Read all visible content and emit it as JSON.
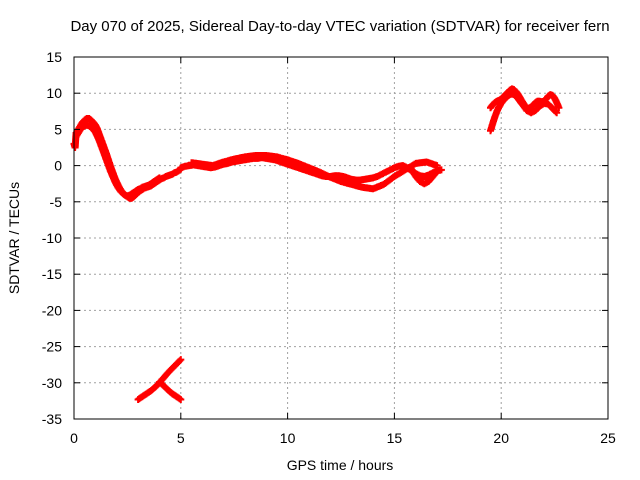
{
  "chart_data": {
    "type": "scatter",
    "title": "Day 070 of 2025, Sidereal Day-to-day VTEC variation (SDTVAR) for receiver fern",
    "xlabel": "GPS time / hours",
    "ylabel": "SDTVAR / TECUs",
    "xlim": [
      0,
      25
    ],
    "ylim": [
      -35,
      15
    ],
    "x_ticks": [
      0,
      5,
      10,
      15,
      20,
      25
    ],
    "y_ticks": [
      15,
      10,
      5,
      0,
      -5,
      -10,
      -15,
      -20,
      -25,
      -30,
      -35
    ],
    "grid": true,
    "series": [
      {
        "name": "SDTVAR",
        "color": "#ff0000",
        "marker": "plus",
        "segments": [
          {
            "x": [
              0.0,
              0.05,
              0.1,
              0.2,
              0.3,
              0.4,
              0.5,
              0.6,
              0.7,
              0.8,
              0.9,
              1.0,
              1.1,
              1.2,
              1.3,
              1.4,
              1.5,
              1.6,
              1.7,
              1.8,
              1.9,
              2.0,
              2.1,
              2.2,
              2.3,
              2.4,
              2.5,
              2.6,
              2.7,
              2.8,
              2.9,
              3.0,
              3.1,
              3.2,
              3.3,
              3.4,
              3.5,
              3.6,
              3.7,
              3.8,
              3.9,
              4.0,
              4.1,
              4.2,
              4.3,
              4.4,
              4.5,
              4.6,
              4.7,
              4.8,
              4.9,
              5.0
            ],
            "y": [
              3.0,
              2.5,
              4.5,
              5.0,
              5.5,
              6.0,
              6.3,
              6.5,
              6.5,
              6.3,
              6.0,
              5.6,
              5.0,
              4.2,
              3.4,
              2.6,
              1.8,
              0.9,
              0.0,
              -0.8,
              -1.6,
              -2.3,
              -2.9,
              -3.4,
              -3.8,
              -4.1,
              -4.3,
              -4.5,
              -4.5,
              -4.3,
              -4.0,
              -3.7,
              -3.5,
              -3.3,
              -3.1,
              -3.0,
              -2.9,
              -2.8,
              -2.6,
              -2.4,
              -2.2,
              -2.0,
              -1.8,
              -1.7,
              -1.5,
              -1.4,
              -1.3,
              -1.2,
              -1.0,
              -0.9,
              -0.7,
              -0.5
            ]
          },
          {
            "x": [
              0.1,
              0.2,
              0.3,
              0.4,
              0.5,
              0.6,
              0.7,
              0.8,
              0.9,
              1.0,
              1.1,
              1.2,
              1.3,
              1.4,
              1.5,
              1.6,
              1.7,
              1.8,
              1.9,
              2.0,
              2.1,
              2.2,
              2.3,
              2.4,
              2.5,
              2.6,
              2.7,
              2.8,
              2.9,
              3.0,
              3.1,
              3.2,
              3.3,
              3.4,
              3.5,
              3.6,
              3.7,
              3.8,
              3.9,
              4.0
            ],
            "y": [
              4.0,
              4.5,
              5.0,
              5.3,
              5.5,
              5.6,
              5.5,
              5.3,
              5.0,
              4.6,
              4.0,
              3.3,
              2.5,
              1.7,
              0.9,
              0.1,
              -0.7,
              -1.4,
              -2.1,
              -2.7,
              -3.2,
              -3.6,
              -3.9,
              -4.1,
              -4.2,
              -4.1,
              -3.9,
              -3.7,
              -3.5,
              -3.3,
              -3.2,
              -3.0,
              -2.9,
              -2.8,
              -2.7,
              -2.5,
              -2.3,
              -2.1,
              -1.9,
              -1.7
            ]
          },
          {
            "x": [
              5.0,
              5.2,
              5.4,
              5.6,
              5.8,
              6.0,
              6.2,
              6.4,
              6.6,
              6.8,
              7.0,
              7.2,
              7.4,
              7.6,
              7.8,
              8.0,
              8.2,
              8.4,
              8.6,
              8.8,
              9.0,
              9.2,
              9.4,
              9.6,
              9.8,
              10.0,
              10.2,
              10.4,
              10.6,
              10.8,
              11.0,
              11.2,
              11.4,
              11.6,
              11.8,
              12.0,
              12.2,
              12.4,
              12.6,
              12.8,
              13.0,
              13.2,
              13.4,
              13.6,
              13.8,
              14.0,
              14.2,
              14.4,
              14.6,
              14.8,
              15.0,
              15.2,
              15.4,
              15.6,
              15.8,
              16.0,
              16.2,
              16.4,
              16.6,
              16.8,
              17.0,
              17.2
            ],
            "y": [
              -0.3,
              -0.1,
              0.0,
              0.1,
              0.0,
              -0.1,
              -0.2,
              -0.3,
              -0.2,
              0.0,
              0.2,
              0.3,
              0.5,
              0.6,
              0.7,
              0.8,
              0.9,
              1.0,
              1.0,
              1.1,
              1.0,
              0.9,
              0.8,
              0.6,
              0.4,
              0.2,
              0.0,
              -0.2,
              -0.4,
              -0.6,
              -0.8,
              -1.0,
              -1.2,
              -1.4,
              -1.5,
              -1.5,
              -1.4,
              -1.4,
              -1.5,
              -1.7,
              -1.9,
              -2.0,
              -2.0,
              -1.9,
              -1.8,
              -1.7,
              -1.5,
              -1.2,
              -0.9,
              -0.6,
              -0.3,
              -0.1,
              0.0,
              -0.3,
              -0.7,
              -1.1,
              -1.4,
              -1.5,
              -1.3,
              -1.0,
              -0.7,
              -0.6
            ]
          },
          {
            "x": [
              5.5,
              6.0,
              6.5,
              7.0,
              7.5,
              8.0,
              8.5,
              9.0,
              9.5,
              10.0,
              10.5,
              11.0,
              11.5,
              12.0,
              12.5,
              13.0,
              13.5,
              14.0,
              14.5,
              15.0,
              15.5,
              16.0,
              16.5,
              17.0
            ],
            "y": [
              0.4,
              0.2,
              0.0,
              0.5,
              0.9,
              1.2,
              1.4,
              1.4,
              1.2,
              0.8,
              0.3,
              -0.3,
              -0.9,
              -1.6,
              -2.2,
              -2.6,
              -3.0,
              -3.2,
              -2.6,
              -1.5,
              -0.6,
              0.3,
              0.5,
              0.0
            ]
          },
          {
            "x": [
              15.8,
              16.0,
              16.2,
              16.4,
              16.6,
              16.8,
              17.0
            ],
            "y": [
              -0.5,
              -1.5,
              -2.2,
              -2.5,
              -2.2,
              -1.5,
              -0.8
            ]
          },
          {
            "x": [
              3.0,
              3.2,
              3.4,
              3.6,
              3.8,
              4.0,
              4.2,
              4.4,
              4.6,
              4.8,
              5.0
            ],
            "y": [
              -32.3,
              -31.9,
              -31.5,
              -31.1,
              -30.6,
              -30.0,
              -29.3,
              -28.6,
              -28.0,
              -27.4,
              -26.8
            ]
          },
          {
            "x": [
              4.0,
              4.2,
              4.4,
              4.6,
              4.8,
              5.0
            ],
            "y": [
              -29.9,
              -30.4,
              -31.0,
              -31.5,
              -31.9,
              -32.3
            ]
          },
          {
            "x": [
              19.5,
              19.6,
              19.7,
              19.8,
              19.9,
              20.0,
              20.1,
              20.2,
              20.3,
              20.4,
              20.5,
              20.6,
              20.7,
              20.8,
              20.9,
              21.0,
              21.1,
              21.2,
              21.3,
              21.4,
              21.5,
              21.6,
              21.7,
              21.8,
              21.9,
              22.0,
              22.1,
              22.2,
              22.3,
              22.4,
              22.5,
              22.6,
              22.7
            ],
            "y": [
              8.0,
              8.4,
              8.7,
              8.9,
              9.0,
              9.2,
              9.5,
              9.8,
              10.1,
              10.4,
              10.6,
              10.5,
              10.2,
              9.8,
              9.3,
              8.8,
              8.3,
              8.0,
              7.9,
              8.1,
              8.4,
              8.7,
              8.9,
              8.9,
              8.8,
              8.9,
              9.2,
              9.6,
              9.8,
              9.7,
              9.3,
              8.7,
              8.0
            ]
          },
          {
            "x": [
              19.5,
              19.6,
              19.7,
              19.8,
              19.9,
              20.0,
              20.1,
              20.2,
              20.3,
              20.4,
              20.5,
              20.6,
              20.7,
              20.8,
              20.9,
              21.0,
              21.2,
              21.4,
              21.6,
              21.8,
              22.0,
              22.2,
              22.4,
              22.6
            ],
            "y": [
              4.8,
              5.8,
              6.7,
              7.5,
              8.1,
              8.6,
              9.0,
              9.3,
              9.6,
              9.8,
              9.9,
              9.8,
              9.6,
              9.2,
              8.8,
              8.4,
              7.6,
              7.3,
              7.6,
              8.2,
              8.6,
              8.5,
              7.9,
              7.3
            ]
          }
        ]
      }
    ]
  }
}
